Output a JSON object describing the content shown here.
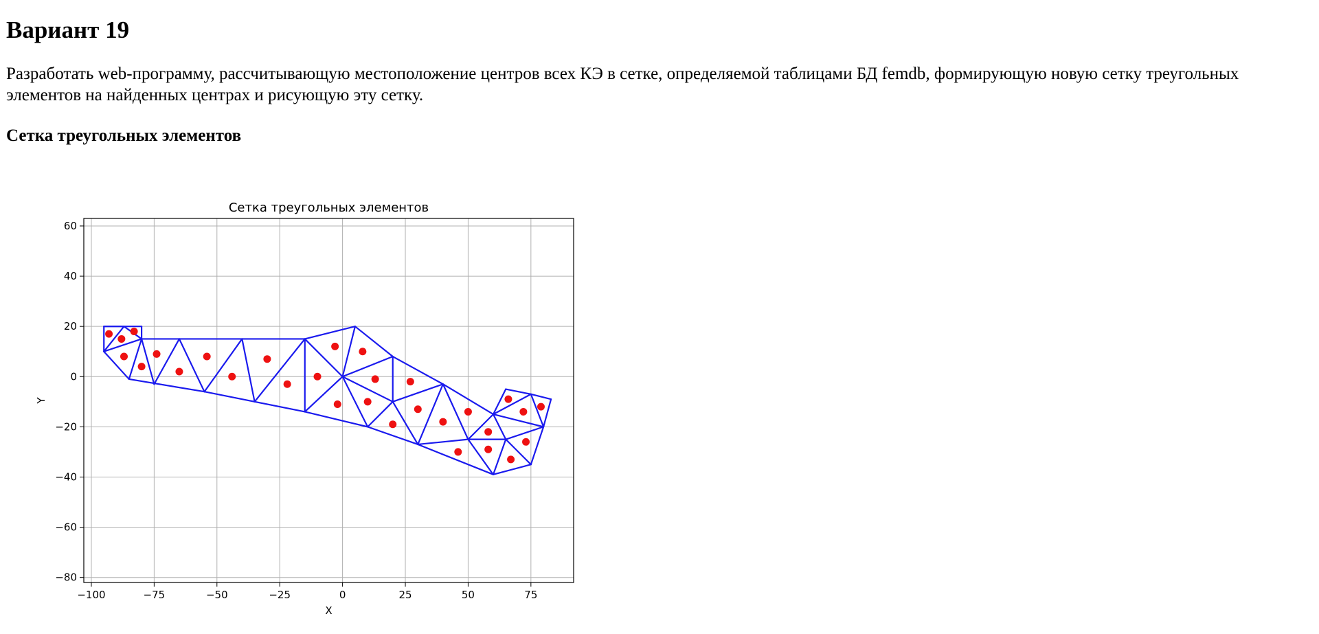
{
  "heading": "Вариант 19",
  "task_text": "Разработать web-программу, рассчитывающую местоположение центров всех КЭ в сетке, определяемой таблицами БД femdb, формирующую новую сетку треугольных элементов на найденных центрах и рисующую эту сетку.",
  "section_heading": "Сетка треугольных элементов",
  "colors": {
    "mesh": "#1a1aee",
    "centers": "#ee1111",
    "grid": "#b0b0b0",
    "text": "#000000"
  },
  "chart_data": {
    "type": "scatter",
    "title": "Сетка треугольных элементов",
    "xlabel": "X",
    "ylabel": "Y",
    "xlim": [
      -103,
      92
    ],
    "ylim": [
      -82,
      63
    ],
    "xticks": [
      -100,
      -75,
      -50,
      -25,
      0,
      25,
      50,
      75
    ],
    "xtick_labels": [
      "−100",
      "−75",
      "−50",
      "−25",
      "0",
      "25",
      "50",
      "75"
    ],
    "yticks": [
      60,
      40,
      20,
      0,
      -20,
      -40,
      -60,
      -80
    ],
    "ytick_labels": [
      "60",
      "40",
      "20",
      "0",
      "−20",
      "−40",
      "−60",
      "−80"
    ],
    "grid": true,
    "mesh_edges": [
      [
        [
          -95,
          20
        ],
        [
          -80,
          20
        ]
      ],
      [
        [
          -80,
          20
        ],
        [
          -80,
          15
        ]
      ],
      [
        [
          -95,
          20
        ],
        [
          -95,
          10
        ]
      ],
      [
        [
          -95,
          20
        ],
        [
          -87,
          20
        ]
      ],
      [
        [
          -87,
          20
        ],
        [
          -95,
          10
        ]
      ],
      [
        [
          -87,
          20
        ],
        [
          -80,
          15
        ]
      ],
      [
        [
          -95,
          10
        ],
        [
          -80,
          15
        ]
      ],
      [
        [
          -95,
          10
        ],
        [
          -85,
          -1
        ]
      ],
      [
        [
          -85,
          -1
        ],
        [
          -80,
          15
        ]
      ],
      [
        [
          -80,
          15
        ],
        [
          -15,
          15
        ]
      ],
      [
        [
          -80,
          15
        ],
        [
          -75,
          -3
        ]
      ],
      [
        [
          -75,
          -3
        ],
        [
          -65,
          15
        ]
      ],
      [
        [
          -65,
          15
        ],
        [
          -55,
          -6
        ]
      ],
      [
        [
          -55,
          -6
        ],
        [
          -40,
          15
        ]
      ],
      [
        [
          -40,
          15
        ],
        [
          -35,
          -10
        ]
      ],
      [
        [
          -35,
          -10
        ],
        [
          -15,
          15
        ]
      ],
      [
        [
          -15,
          15
        ],
        [
          -15,
          -14
        ]
      ],
      [
        [
          -85,
          -1
        ],
        [
          -55,
          -6
        ]
      ],
      [
        [
          -55,
          -6
        ],
        [
          -35,
          -10
        ]
      ],
      [
        [
          -35,
          -10
        ],
        [
          -15,
          -14
        ]
      ],
      [
        [
          -15,
          15
        ],
        [
          5,
          20
        ]
      ],
      [
        [
          5,
          20
        ],
        [
          0,
          0
        ]
      ],
      [
        [
          -15,
          15
        ],
        [
          0,
          0
        ]
      ],
      [
        [
          -15,
          -14
        ],
        [
          0,
          0
        ]
      ],
      [
        [
          5,
          20
        ],
        [
          20,
          8
        ]
      ],
      [
        [
          0,
          0
        ],
        [
          20,
          8
        ]
      ],
      [
        [
          20,
          8
        ],
        [
          20,
          -10
        ]
      ],
      [
        [
          0,
          0
        ],
        [
          20,
          -10
        ]
      ],
      [
        [
          0,
          0
        ],
        [
          10,
          -20
        ]
      ],
      [
        [
          -15,
          -14
        ],
        [
          10,
          -20
        ]
      ],
      [
        [
          10,
          -20
        ],
        [
          20,
          -10
        ]
      ],
      [
        [
          20,
          8
        ],
        [
          40,
          -3
        ]
      ],
      [
        [
          20,
          -10
        ],
        [
          40,
          -3
        ]
      ],
      [
        [
          20,
          -10
        ],
        [
          30,
          -27
        ]
      ],
      [
        [
          10,
          -20
        ],
        [
          30,
          -27
        ]
      ],
      [
        [
          30,
          -27
        ],
        [
          40,
          -3
        ]
      ],
      [
        [
          40,
          -3
        ],
        [
          50,
          -25
        ]
      ],
      [
        [
          40,
          -3
        ],
        [
          60,
          -15
        ]
      ],
      [
        [
          30,
          -27
        ],
        [
          50,
          -25
        ]
      ],
      [
        [
          30,
          -27
        ],
        [
          60,
          -39
        ]
      ],
      [
        [
          50,
          -25
        ],
        [
          60,
          -39
        ]
      ],
      [
        [
          50,
          -25
        ],
        [
          60,
          -15
        ]
      ],
      [
        [
          60,
          -15
        ],
        [
          65,
          -25
        ]
      ],
      [
        [
          50,
          -25
        ],
        [
          65,
          -25
        ]
      ],
      [
        [
          65,
          -25
        ],
        [
          60,
          -39
        ]
      ],
      [
        [
          60,
          -39
        ],
        [
          75,
          -35
        ]
      ],
      [
        [
          65,
          -25
        ],
        [
          75,
          -35
        ]
      ],
      [
        [
          75,
          -35
        ],
        [
          80,
          -20
        ]
      ],
      [
        [
          65,
          -25
        ],
        [
          80,
          -20
        ]
      ],
      [
        [
          60,
          -15
        ],
        [
          80,
          -20
        ]
      ],
      [
        [
          60,
          -15
        ],
        [
          65,
          -5
        ]
      ],
      [
        [
          65,
          -5
        ],
        [
          75,
          -7
        ]
      ],
      [
        [
          60,
          -15
        ],
        [
          75,
          -7
        ]
      ],
      [
        [
          75,
          -7
        ],
        [
          80,
          -20
        ]
      ],
      [
        [
          75,
          -7
        ],
        [
          83,
          -9
        ]
      ],
      [
        [
          83,
          -9
        ],
        [
          80,
          -20
        ]
      ]
    ],
    "centers": [
      [
        -93,
        17
      ],
      [
        -88,
        15
      ],
      [
        -83,
        18
      ],
      [
        -87,
        8
      ],
      [
        -80,
        4
      ],
      [
        -74,
        9
      ],
      [
        -65,
        2
      ],
      [
        -54,
        8
      ],
      [
        -44,
        0
      ],
      [
        -30,
        7
      ],
      [
        -22,
        -3
      ],
      [
        -10,
        0
      ],
      [
        -3,
        12
      ],
      [
        8,
        10
      ],
      [
        13,
        -1
      ],
      [
        27,
        -2
      ],
      [
        -2,
        -11
      ],
      [
        10,
        -10
      ],
      [
        20,
        -19
      ],
      [
        30,
        -13
      ],
      [
        40,
        -18
      ],
      [
        50,
        -14
      ],
      [
        46,
        -30
      ],
      [
        58,
        -22
      ],
      [
        58,
        -29
      ],
      [
        66,
        -9
      ],
      [
        72,
        -14
      ],
      [
        79,
        -12
      ],
      [
        73,
        -26
      ],
      [
        67,
        -33
      ]
    ]
  }
}
